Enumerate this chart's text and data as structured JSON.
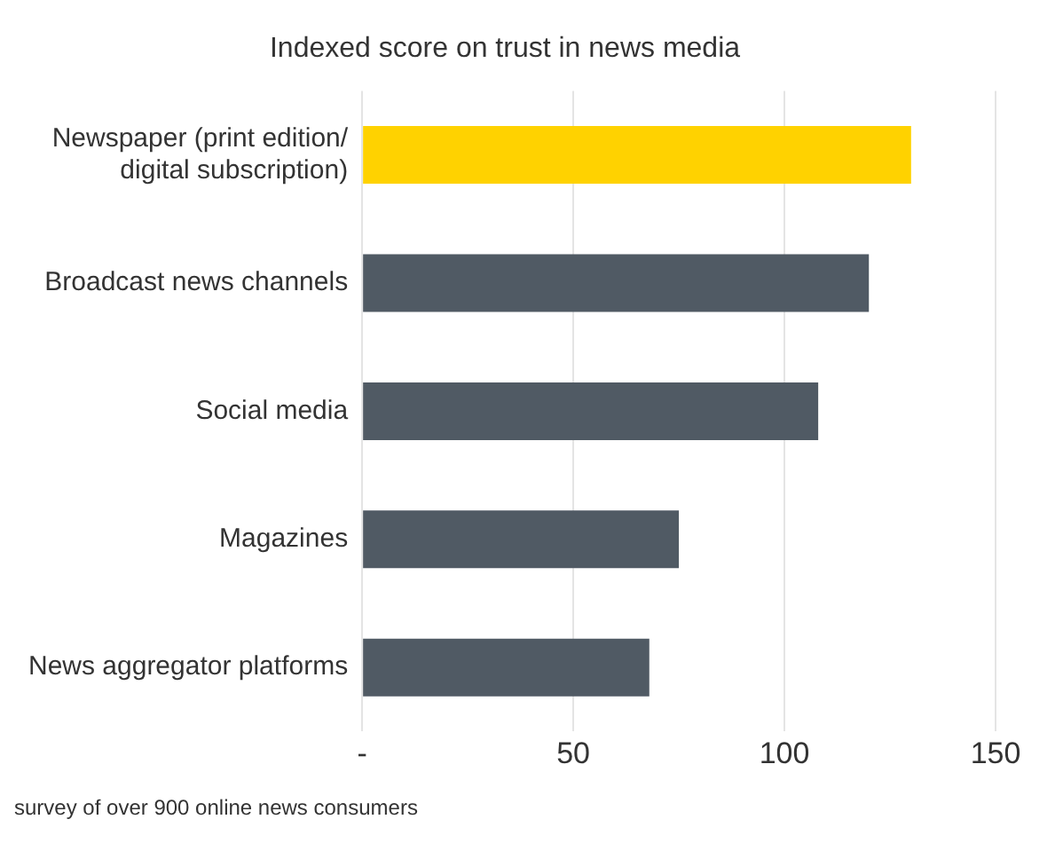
{
  "chart_data": {
    "type": "bar",
    "orientation": "horizontal",
    "title": "Indexed score on trust in news media",
    "categories": [
      "Newspaper (print edition/ digital subscription)",
      "Broadcast news channels",
      "Social media",
      "Magazines",
      "News aggregator platforms"
    ],
    "values": [
      130,
      120,
      108,
      75,
      68
    ],
    "colors": [
      "#ffd200",
      "#505a64",
      "#505a64",
      "#505a64",
      "#505a64"
    ],
    "xlim": [
      0,
      150
    ],
    "xticks": [
      {
        "value": 0,
        "label": "-"
      },
      50,
      100,
      150
    ],
    "grid": "x",
    "legend": false,
    "annotations": [
      "survey of over 900 online news consumers"
    ]
  }
}
